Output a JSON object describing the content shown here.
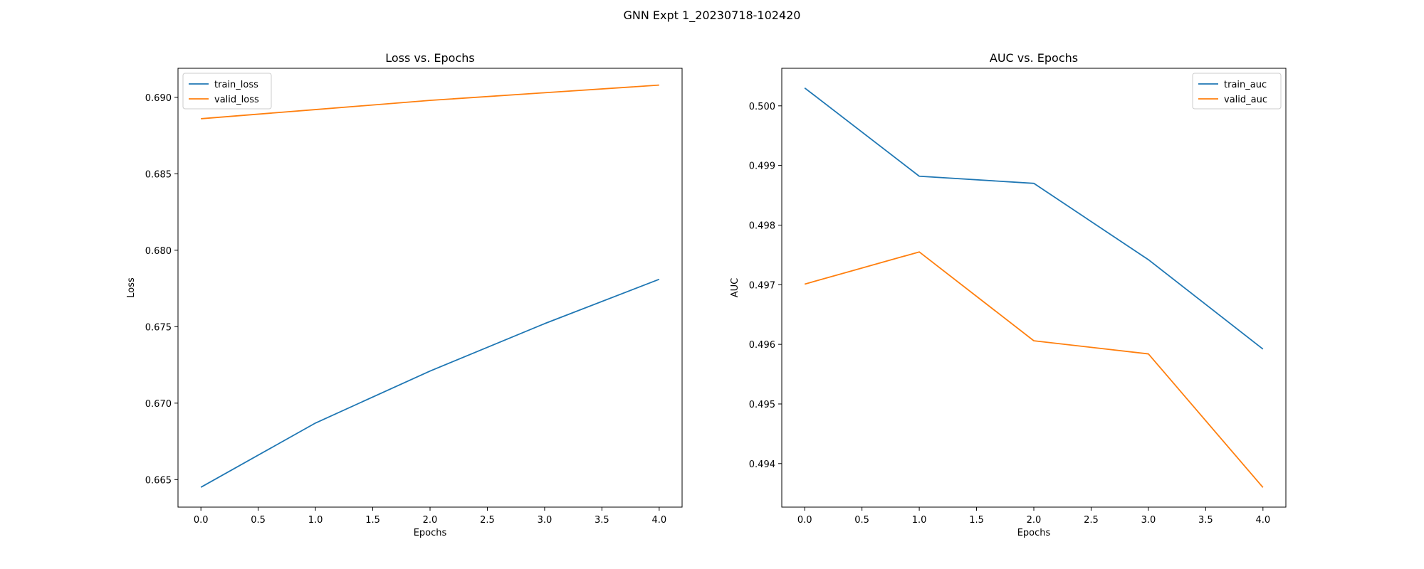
{
  "figure": {
    "suptitle": "GNN Expt 1_20230718-102420"
  },
  "chart_data": [
    {
      "type": "line",
      "title": "Loss vs. Epochs",
      "xlabel": "Epochs",
      "ylabel": "Loss",
      "xlim": [
        -0.2,
        4.2
      ],
      "ylim": [
        0.6632,
        0.6919
      ],
      "xticks": [
        0.0,
        0.5,
        1.0,
        1.5,
        2.0,
        2.5,
        3.0,
        3.5,
        4.0
      ],
      "xtick_labels": [
        "0.0",
        "0.5",
        "1.0",
        "1.5",
        "2.0",
        "2.5",
        "3.0",
        "3.5",
        "4.0"
      ],
      "yticks": [
        0.665,
        0.67,
        0.675,
        0.68,
        0.685,
        0.69
      ],
      "ytick_labels": [
        "0.665",
        "0.670",
        "0.675",
        "0.680",
        "0.685",
        "0.690"
      ],
      "grid": false,
      "legend_position": "upper left",
      "x": [
        0,
        1,
        2,
        3,
        4
      ],
      "series": [
        {
          "name": "train_loss",
          "color": "#1f77b4",
          "values": [
            0.6645,
            0.6687,
            0.6721,
            0.6752,
            0.6781
          ]
        },
        {
          "name": "valid_loss",
          "color": "#ff7f0e",
          "values": [
            0.6886,
            0.6892,
            0.6898,
            0.6903,
            0.6908
          ]
        }
      ]
    },
    {
      "type": "line",
      "title": "AUC vs. Epochs",
      "xlabel": "Epochs",
      "ylabel": "AUC",
      "xlim": [
        -0.2,
        4.2
      ],
      "ylim": [
        0.49327,
        0.50063
      ],
      "xticks": [
        0.0,
        0.5,
        1.0,
        1.5,
        2.0,
        2.5,
        3.0,
        3.5,
        4.0
      ],
      "xtick_labels": [
        "0.0",
        "0.5",
        "1.0",
        "1.5",
        "2.0",
        "2.5",
        "3.0",
        "3.5",
        "4.0"
      ],
      "yticks": [
        0.494,
        0.495,
        0.496,
        0.497,
        0.498,
        0.499,
        0.5
      ],
      "ytick_labels": [
        "0.494",
        "0.495",
        "0.496",
        "0.497",
        "0.498",
        "0.499",
        "0.500"
      ],
      "grid": false,
      "legend_position": "upper right",
      "x": [
        0,
        1,
        2,
        3,
        4
      ],
      "series": [
        {
          "name": "train_auc",
          "color": "#1f77b4",
          "values": [
            0.5003,
            0.49882,
            0.4987,
            0.49742,
            0.49592
          ]
        },
        {
          "name": "valid_auc",
          "color": "#ff7f0e",
          "values": [
            0.49701,
            0.49755,
            0.49606,
            0.49584,
            0.4936
          ]
        }
      ]
    }
  ]
}
